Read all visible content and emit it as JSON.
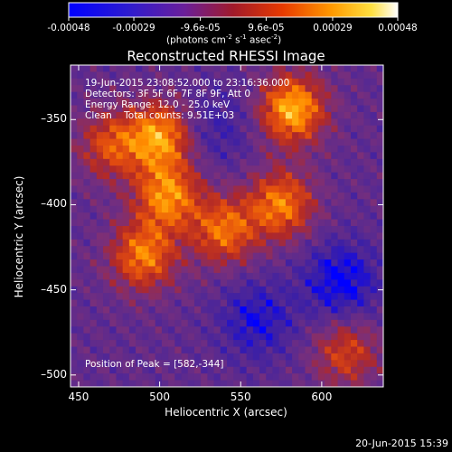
{
  "colorbar": {
    "tick_labels": [
      "-0.00048",
      "-0.00029",
      "-9.6e-05",
      "9.6e-05",
      "0.00029",
      "0.00048"
    ],
    "tick_values": [
      -0.00048,
      -0.00029,
      -9.6e-05,
      9.6e-05,
      0.00029,
      0.00048
    ],
    "range": [
      -0.00048,
      0.00048
    ],
    "units_prefix": "(photons cm",
    "units_exp1": "-2",
    "units_mid": " s",
    "units_exp2": "-1",
    "units_mid2": " asec",
    "units_exp3": "-2",
    "units_suffix": ")"
  },
  "chart_data": {
    "type": "heatmap",
    "title": "Reconstructed RHESSI Image",
    "xlabel": "Heliocentric X (arcsec)",
    "ylabel": "Heliocentric Y (arcsec)",
    "xlim": [
      445,
      638
    ],
    "ylim": [
      -507,
      -318
    ],
    "x_ticks": [
      450,
      500,
      550,
      600
    ],
    "x_tick_labels": [
      "450",
      "500",
      "550",
      "600"
    ],
    "y_ticks": [
      -350,
      -400,
      -450,
      -500
    ],
    "y_tick_labels": [
      "–350",
      "–400",
      "–450",
      "–500"
    ],
    "colormap": [
      "#0000ff",
      "#3b1fa6",
      "#5a2a8f",
      "#7a2f7a",
      "#b02828",
      "#e04a10",
      "#ff8a00",
      "#ffd020",
      "#ffffff"
    ],
    "peak": [
      582,
      -344
    ],
    "bright_regions": [
      {
        "x": 582,
        "y": -344,
        "strength": 1.0
      },
      {
        "x": 500,
        "y": -360,
        "strength": 0.9
      },
      {
        "x": 505,
        "y": -395,
        "strength": 0.85
      },
      {
        "x": 490,
        "y": -430,
        "strength": 0.8
      },
      {
        "x": 540,
        "y": -415,
        "strength": 0.75
      },
      {
        "x": 575,
        "y": -400,
        "strength": 0.8
      },
      {
        "x": 470,
        "y": -365,
        "strength": 0.6
      },
      {
        "x": 615,
        "y": -487,
        "strength": 0.55
      }
    ],
    "dark_regions": [
      {
        "x": 612,
        "y": -445,
        "strength": 1.0
      },
      {
        "x": 560,
        "y": -468,
        "strength": 0.8
      },
      {
        "x": 535,
        "y": -355,
        "strength": 0.5
      }
    ]
  },
  "annotations": {
    "time": "19-Jun-2015 23:08:52.000 to 23:16:36.000",
    "detectors": "Detectors: 3F 5F 6F 7F 8F 9F, Att 0",
    "energy": "Energy Range: 12.0 - 25.0 keV",
    "clean": "Clean    Total counts: 9.51E+03",
    "peak": "Position of Peak = [582,-344]"
  },
  "footer_timestamp": "20-Jun-2015 15:39"
}
